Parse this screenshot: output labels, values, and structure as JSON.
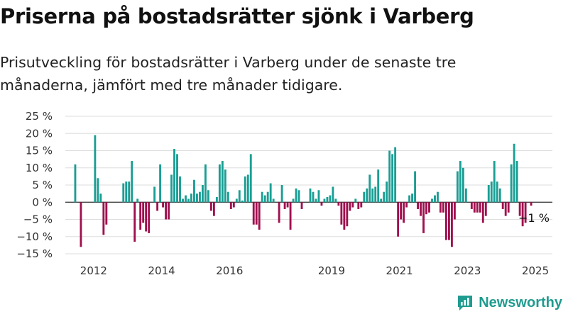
{
  "title": "Priserna på bostadsrätter sjönk i Varberg",
  "subtitle": "Prisutveckling för bostadsrätter i Varberg under de senaste tre månaderna, jämfört med tre månader tidigare.",
  "brand": "Newsworthy",
  "colors": {
    "positive": "#1a9e94",
    "negative": "#a0104e",
    "grid": "#dddddd",
    "axis": "#333333"
  },
  "chart_data": {
    "type": "bar",
    "x_unit": "month",
    "x_range": [
      "2011-09",
      "2025-12"
    ],
    "ylim": [
      -15,
      25
    ],
    "yticks": [
      25,
      20,
      15,
      10,
      5,
      0,
      -5,
      -10,
      -15
    ],
    "ytick_suffix": " %",
    "xtick_labels": [
      "2012",
      "2014",
      "2016",
      "2019",
      "2021",
      "2023",
      "2025"
    ],
    "grid": true,
    "annotation": {
      "label": "−1 %",
      "month": "2025-05",
      "value": -1
    },
    "series": [
      {
        "values": [
          [
            "2011-12",
            11
          ],
          [
            "2012-02",
            -13
          ],
          [
            "2012-07",
            19.5
          ],
          [
            "2012-08",
            7
          ],
          [
            "2012-09",
            2.5
          ],
          [
            "2012-10",
            -9.5
          ],
          [
            "2012-11",
            -6.5
          ],
          [
            "2013-05",
            5.5
          ],
          [
            "2013-06",
            6
          ],
          [
            "2013-07",
            6
          ],
          [
            "2013-08",
            12
          ],
          [
            "2013-09",
            -11.5
          ],
          [
            "2013-10",
            1
          ],
          [
            "2013-11",
            -8
          ],
          [
            "2013-12",
            -6
          ],
          [
            "2014-01",
            -8.5
          ],
          [
            "2014-02",
            -9
          ],
          [
            "2014-04",
            4.5
          ],
          [
            "2014-05",
            -2.5
          ],
          [
            "2014-06",
            11
          ],
          [
            "2014-07",
            -1.5
          ],
          [
            "2014-08",
            -5
          ],
          [
            "2014-09",
            -5
          ],
          [
            "2014-10",
            8
          ],
          [
            "2014-11",
            15.5
          ],
          [
            "2014-12",
            14
          ],
          [
            "2015-01",
            7.5
          ],
          [
            "2015-02",
            1
          ],
          [
            "2015-03",
            2
          ],
          [
            "2015-04",
            1
          ],
          [
            "2015-05",
            2.5
          ],
          [
            "2015-06",
            6.5
          ],
          [
            "2015-07",
            2.5
          ],
          [
            "2015-08",
            3
          ],
          [
            "2015-09",
            5
          ],
          [
            "2015-10",
            11
          ],
          [
            "2015-11",
            3.5
          ],
          [
            "2015-12",
            -2.5
          ],
          [
            "2016-01",
            -4
          ],
          [
            "2016-02",
            1.5
          ],
          [
            "2016-03",
            11
          ],
          [
            "2016-04",
            12
          ],
          [
            "2016-05",
            9.5
          ],
          [
            "2016-06",
            3
          ],
          [
            "2016-07",
            -2
          ],
          [
            "2016-08",
            -1.5
          ],
          [
            "2016-09",
            1
          ],
          [
            "2016-10",
            3.5
          ],
          [
            "2016-11",
            0.5
          ],
          [
            "2016-12",
            7.5
          ],
          [
            "2017-01",
            8
          ],
          [
            "2017-02",
            14
          ],
          [
            "2017-03",
            -6.5
          ],
          [
            "2017-04",
            -6.5
          ],
          [
            "2017-05",
            -8
          ],
          [
            "2017-06",
            3
          ],
          [
            "2017-07",
            2
          ],
          [
            "2017-08",
            3
          ],
          [
            "2017-09",
            5.5
          ],
          [
            "2017-10",
            1
          ],
          [
            "2017-12",
            -6
          ],
          [
            "2018-01",
            5
          ],
          [
            "2018-02",
            -2
          ],
          [
            "2018-03",
            -1.5
          ],
          [
            "2018-04",
            -8
          ],
          [
            "2018-05",
            1
          ],
          [
            "2018-06",
            4
          ],
          [
            "2018-07",
            3.5
          ],
          [
            "2018-08",
            -2
          ],
          [
            "2018-11",
            4
          ],
          [
            "2018-12",
            3
          ],
          [
            "2019-01",
            1
          ],
          [
            "2019-02",
            3.5
          ],
          [
            "2019-03",
            -1
          ],
          [
            "2019-04",
            1
          ],
          [
            "2019-05",
            1.5
          ],
          [
            "2019-06",
            2
          ],
          [
            "2019-07",
            4.5
          ],
          [
            "2019-08",
            1
          ],
          [
            "2019-09",
            -1
          ],
          [
            "2019-10",
            -6.5
          ],
          [
            "2019-11",
            -8
          ],
          [
            "2019-12",
            -7
          ],
          [
            "2020-01",
            -2.5
          ],
          [
            "2020-02",
            -1.5
          ],
          [
            "2020-03",
            1
          ],
          [
            "2020-04",
            -2
          ],
          [
            "2020-05",
            -1.5
          ],
          [
            "2020-06",
            3
          ],
          [
            "2020-07",
            4
          ],
          [
            "2020-08",
            8
          ],
          [
            "2020-09",
            4
          ],
          [
            "2020-10",
            4.5
          ],
          [
            "2020-11",
            9.5
          ],
          [
            "2020-12",
            1
          ],
          [
            "2021-01",
            3
          ],
          [
            "2021-02",
            6
          ],
          [
            "2021-03",
            15
          ],
          [
            "2021-04",
            14
          ],
          [
            "2021-05",
            16
          ],
          [
            "2021-06",
            -10
          ],
          [
            "2021-07",
            -5
          ],
          [
            "2021-08",
            -6
          ],
          [
            "2021-09",
            -1.5
          ],
          [
            "2021-10",
            2
          ],
          [
            "2021-11",
            2.5
          ],
          [
            "2021-12",
            9
          ],
          [
            "2022-01",
            -2
          ],
          [
            "2022-02",
            -4
          ],
          [
            "2022-03",
            -9
          ],
          [
            "2022-04",
            -3.5
          ],
          [
            "2022-05",
            -3
          ],
          [
            "2022-06",
            1
          ],
          [
            "2022-07",
            2
          ],
          [
            "2022-08",
            3
          ],
          [
            "2022-09",
            -3
          ],
          [
            "2022-10",
            -3
          ],
          [
            "2022-11",
            -11
          ],
          [
            "2022-12",
            -11
          ],
          [
            "2023-01",
            -13
          ],
          [
            "2023-02",
            -5
          ],
          [
            "2023-03",
            9
          ],
          [
            "2023-04",
            12
          ],
          [
            "2023-05",
            10
          ],
          [
            "2023-06",
            4
          ],
          [
            "2023-08",
            -2
          ],
          [
            "2023-09",
            -3
          ],
          [
            "2023-10",
            -3
          ],
          [
            "2023-11",
            -3
          ],
          [
            "2023-12",
            -6
          ],
          [
            "2024-01",
            -4
          ],
          [
            "2024-02",
            5
          ],
          [
            "2024-03",
            6
          ],
          [
            "2024-04",
            12
          ],
          [
            "2024-05",
            6
          ],
          [
            "2024-06",
            4
          ],
          [
            "2024-07",
            -2
          ],
          [
            "2024-08",
            -4
          ],
          [
            "2024-09",
            -3
          ],
          [
            "2024-10",
            11
          ],
          [
            "2024-11",
            17
          ],
          [
            "2024-12",
            12
          ],
          [
            "2025-01",
            -4
          ],
          [
            "2025-02",
            -7
          ],
          [
            "2025-03",
            -6
          ],
          [
            "2025-05",
            -1
          ]
        ]
      }
    ]
  }
}
